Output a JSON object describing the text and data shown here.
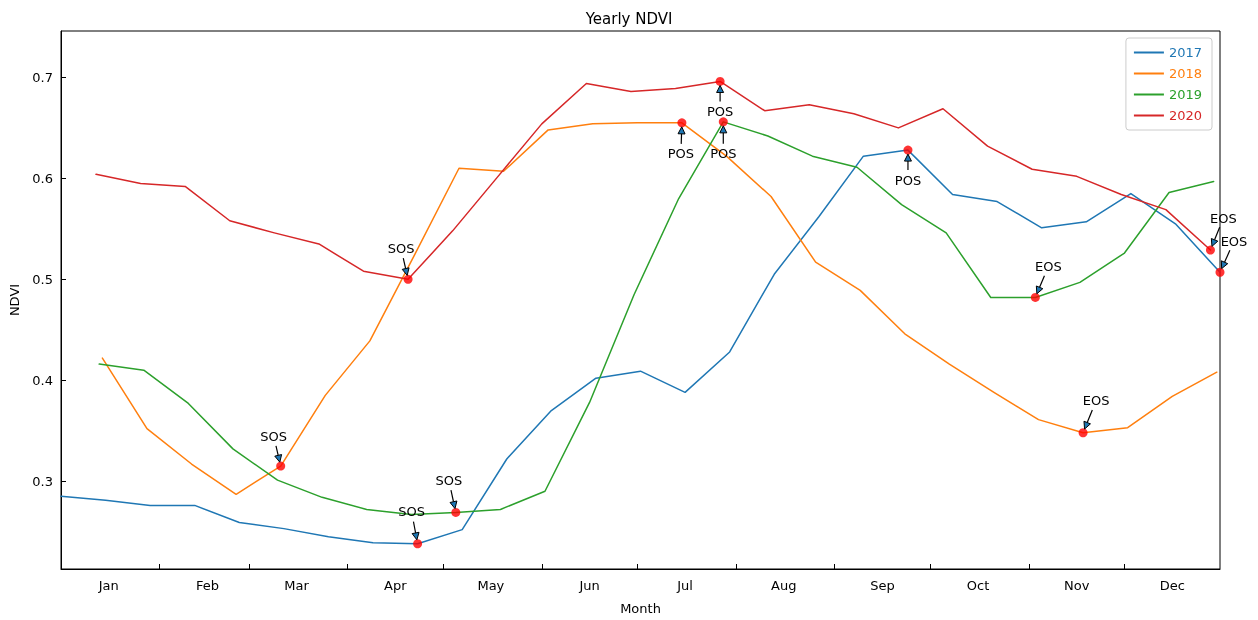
{
  "chart_data": {
    "type": "line",
    "title": "Yearly NDVI",
    "xlabel": "Month",
    "ylabel": "NDVI",
    "xlim": [
      "--01-01",
      "--12-31"
    ],
    "xticks": [
      {
        "value": "--01-16",
        "label": "Jan"
      },
      {
        "value": "--02-01",
        "label": null
      },
      {
        "value": "--02-16",
        "label": "Feb"
      },
      {
        "value": "--03-01",
        "label": null
      },
      {
        "value": "--03-16",
        "label": "Mar"
      },
      {
        "value": "--04-01",
        "label": null
      },
      {
        "value": "--04-16",
        "label": "Apr"
      },
      {
        "value": "--05-01",
        "label": null
      },
      {
        "value": "--05-16",
        "label": "May"
      },
      {
        "value": "--06-01",
        "label": null
      },
      {
        "value": "--06-16",
        "label": "Jun"
      },
      {
        "value": "--07-01",
        "label": null
      },
      {
        "value": "--07-16",
        "label": "Jul"
      },
      {
        "value": "--08-01",
        "label": null
      },
      {
        "value": "--08-16",
        "label": "Aug"
      },
      {
        "value": "--09-01",
        "label": null
      },
      {
        "value": "--09-16",
        "label": "Sep"
      },
      {
        "value": "--10-01",
        "label": null
      },
      {
        "value": "--10-16",
        "label": "Oct"
      },
      {
        "value": "--11-01",
        "label": null
      },
      {
        "value": "--11-16",
        "label": "Nov"
      },
      {
        "value": "--12-01",
        "label": null
      },
      {
        "value": "--12-16",
        "label": "Dec"
      }
    ],
    "ylim": [
      0.213,
      0.746
    ],
    "yticks": [
      0.3,
      0.4,
      0.5,
      0.6,
      0.7
    ],
    "legend": "top right",
    "series": [
      {
        "name": "2017",
        "color": "#1f77b4",
        "x": [
          "--01-01",
          "--01-15",
          "--01-29",
          "--02-12",
          "--02-26",
          "--03-12",
          "--03-26",
          "--04-09",
          "--04-23",
          "--05-07",
          "--05-21",
          "--06-04",
          "--06-18",
          "--07-02",
          "--07-16",
          "--07-30",
          "--08-13",
          "--08-27",
          "--09-10",
          "--09-24",
          "--10-08",
          "--10-22",
          "--11-05",
          "--11-19",
          "--12-03",
          "--12-17",
          "--12-31"
        ],
        "values": [
          0.285,
          0.281,
          0.276,
          0.276,
          0.259,
          0.253,
          0.245,
          0.239,
          0.238,
          0.252,
          0.322,
          0.37,
          0.402,
          0.409,
          0.388,
          0.428,
          0.505,
          0.562,
          0.622,
          0.628,
          0.584,
          0.577,
          0.551,
          0.557,
          0.585,
          0.555,
          0.507
        ]
      },
      {
        "name": "2018",
        "color": "#ff7f0e",
        "x": [
          "--01-14",
          "--01-28",
          "--02-11",
          "--02-25",
          "--03-11",
          "--03-25",
          "--04-08",
          "--04-22",
          "--05-06",
          "--05-20",
          "--06-03",
          "--06-17",
          "--07-01",
          "--07-15",
          "--07-29",
          "--08-12",
          "--08-26",
          "--09-09",
          "--09-23",
          "--10-07",
          "--10-21",
          "--11-04",
          "--11-18",
          "--12-02",
          "--12-16",
          "--12-30"
        ],
        "values": [
          0.422,
          0.352,
          0.317,
          0.287,
          0.315,
          0.385,
          0.439,
          0.524,
          0.61,
          0.607,
          0.648,
          0.654,
          0.655,
          0.655,
          0.622,
          0.582,
          0.517,
          0.489,
          0.446,
          0.416,
          0.388,
          0.361,
          0.348,
          0.353,
          0.384,
          0.408
        ]
      },
      {
        "name": "2019",
        "color": "#2ca02c",
        "x": [
          "--01-13",
          "--01-27",
          "--02-10",
          "--02-24",
          "--03-10",
          "--03-24",
          "--04-07",
          "--04-21",
          "--05-05",
          "--05-19",
          "--06-02",
          "--06-16",
          "--06-30",
          "--07-14",
          "--07-28",
          "--08-11",
          "--08-25",
          "--09-08",
          "--09-22",
          "--10-06",
          "--10-20",
          "--11-03",
          "--11-17",
          "--12-01",
          "--12-15",
          "--12-29"
        ],
        "values": [
          0.416,
          0.41,
          0.377,
          0.332,
          0.301,
          0.284,
          0.272,
          0.267,
          0.269,
          0.272,
          0.29,
          0.378,
          0.485,
          0.58,
          0.656,
          0.642,
          0.622,
          0.611,
          0.574,
          0.546,
          0.482,
          0.482,
          0.497,
          0.526,
          0.586,
          0.597
        ]
      },
      {
        "name": "2020",
        "color": "#d62728",
        "x": [
          "--01-12",
          "--01-26",
          "--02-09",
          "--02-23",
          "--03-09",
          "--03-23",
          "--04-06",
          "--04-20",
          "--05-04",
          "--05-18",
          "--06-01",
          "--06-15",
          "--06-29",
          "--07-13",
          "--07-27",
          "--08-10",
          "--08-24",
          "--09-07",
          "--09-21",
          "--10-05",
          "--10-19",
          "--11-02",
          "--11-16",
          "--11-30",
          "--12-14",
          "--12-28"
        ],
        "values": [
          0.604,
          0.595,
          0.592,
          0.558,
          0.546,
          0.535,
          0.508,
          0.5,
          0.548,
          0.601,
          0.654,
          0.694,
          0.686,
          0.689,
          0.696,
          0.667,
          0.673,
          0.664,
          0.65,
          0.669,
          0.632,
          0.609,
          0.602,
          0.584,
          0.569,
          0.529
        ]
      },
      {
        "type": "scatter",
        "color": "#ff0000",
        "x": [
          "--04-23",
          "--09-24",
          "--12-31",
          "--03-11",
          "--07-15",
          "--11-18",
          "--05-05",
          "--07-28",
          "--11-03",
          "--04-20",
          "--07-27",
          "--12-28"
        ],
        "values": [
          0.238,
          0.628,
          0.507,
          0.315,
          0.655,
          0.348,
          0.269,
          0.656,
          0.482,
          0.5,
          0.696,
          0.529
        ]
      }
    ],
    "annotations": [
      {
        "text": "SOS",
        "x": "--04-23",
        "y": 0.238
      },
      {
        "text": "POS",
        "x": "--09-24",
        "y": 0.628
      },
      {
        "text": "EOS",
        "x": "--12-31",
        "y": 0.507
      },
      {
        "text": "SOS",
        "x": "--03-11",
        "y": 0.315
      },
      {
        "text": "POS",
        "x": "--07-15",
        "y": 0.655
      },
      {
        "text": "EOS",
        "x": "--11-18",
        "y": 0.348
      },
      {
        "text": "SOS",
        "x": "--05-05",
        "y": 0.269
      },
      {
        "text": "POS",
        "x": "--07-28",
        "y": 0.656
      },
      {
        "text": "EOS",
        "x": "--11-03",
        "y": 0.482
      },
      {
        "text": "SOS",
        "x": "--04-20",
        "y": 0.5
      },
      {
        "text": "POS",
        "x": "--07-27",
        "y": 0.696
      },
      {
        "text": "EOS",
        "x": "--12-28",
        "y": 0.529
      }
    ]
  }
}
